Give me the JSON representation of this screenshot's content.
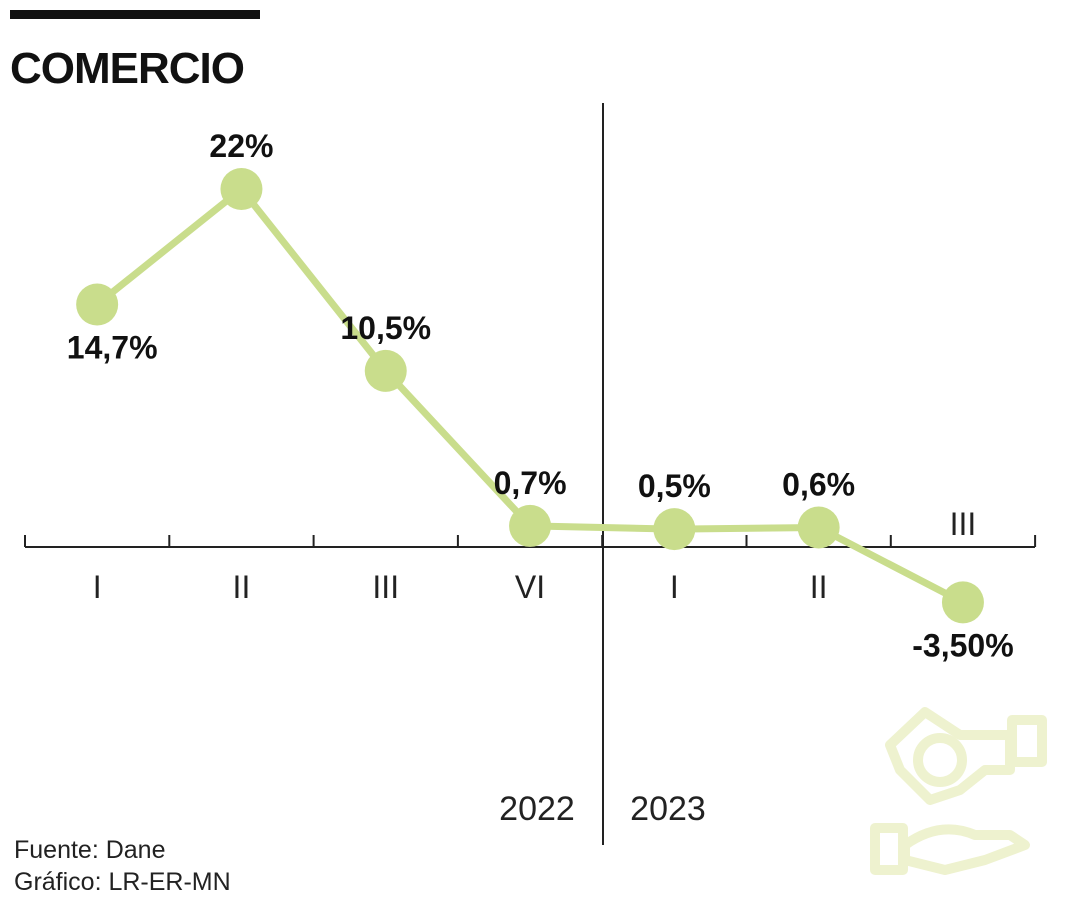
{
  "title": "COMERCIO",
  "source": "Fuente: Dane",
  "credit": "Gráfico: LR-ER-MN",
  "icon": "hands-money-icon",
  "colors": {
    "accent": "#c9dd8c",
    "icon": "#eef2cf",
    "text": "#111111",
    "axis": "#222222"
  },
  "chart_data": {
    "type": "line",
    "title": "COMERCIO",
    "categories": [
      "I",
      "II",
      "III",
      "VI",
      "I",
      "II",
      "III"
    ],
    "values": [
      14.7,
      22,
      10.5,
      0.7,
      0.5,
      0.6,
      -3.5
    ],
    "data_labels": [
      "14,7%",
      "22%",
      "10,5%",
      "0,7%",
      "0,5%",
      "0,6%",
      "-3,50%"
    ],
    "years": [
      "2022",
      "2023"
    ],
    "xlabel": "",
    "ylabel": "",
    "ylim": [
      -5,
      25
    ],
    "grid": false,
    "legend": "none"
  }
}
